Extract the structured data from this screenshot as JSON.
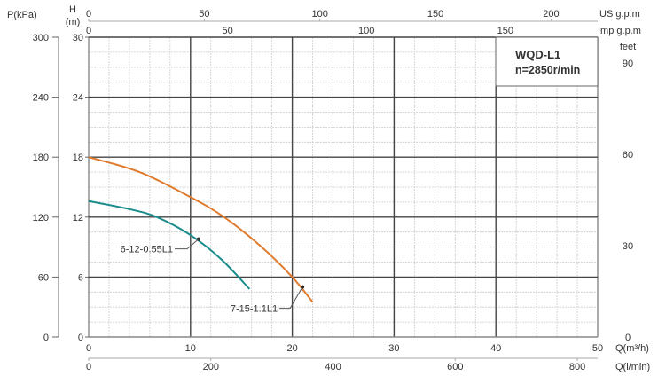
{
  "chart_data": {
    "type": "line",
    "title": "WQD-L1",
    "subtitle": "n=2850r/min",
    "xlabel": "Q(m³/h)",
    "ylabel": "H (m)",
    "xlim": [
      0,
      50
    ],
    "ylim": [
      0,
      30
    ],
    "grid": true,
    "x_ticks": [
      0,
      10,
      20,
      30,
      40,
      50
    ],
    "y_ticks": [
      0,
      6,
      12,
      18,
      24,
      30
    ],
    "secondary_axes": {
      "pressure": {
        "label": "P(kPa)",
        "ticks": [
          0,
          60,
          120,
          180,
          240,
          300
        ]
      },
      "feet": {
        "label": "feet",
        "ticks": [
          0,
          30,
          60,
          90
        ]
      },
      "us_gpm": {
        "label": "US g.p.m",
        "ticks": [
          0,
          50,
          100,
          150,
          200
        ]
      },
      "imp_gpm": {
        "label": "Imp g.p.m",
        "ticks": [
          0,
          50,
          100,
          150
        ]
      },
      "l_min": {
        "label": "Q(l/min)",
        "ticks": [
          0,
          200,
          400,
          600,
          800
        ]
      }
    },
    "y_label_top": "H",
    "y_label_bottom": "(m)",
    "series": [
      {
        "name": "7-15-1.1L1",
        "color": "#e07b2e",
        "x": [
          0,
          5,
          10,
          13.3,
          17,
          20,
          22
        ],
        "y": [
          18,
          16.5,
          14.0,
          12,
          9,
          6,
          3.5
        ],
        "label_point": [
          21,
          5
        ]
      },
      {
        "name": "6-12-0.55L1",
        "color": "#1a8c8c",
        "x": [
          0,
          4,
          6.7,
          10,
          13,
          15.8
        ],
        "y": [
          13.6,
          12.8,
          12,
          10.2,
          7.8,
          4.8
        ],
        "label_point": [
          10.8,
          9.8
        ]
      }
    ]
  }
}
